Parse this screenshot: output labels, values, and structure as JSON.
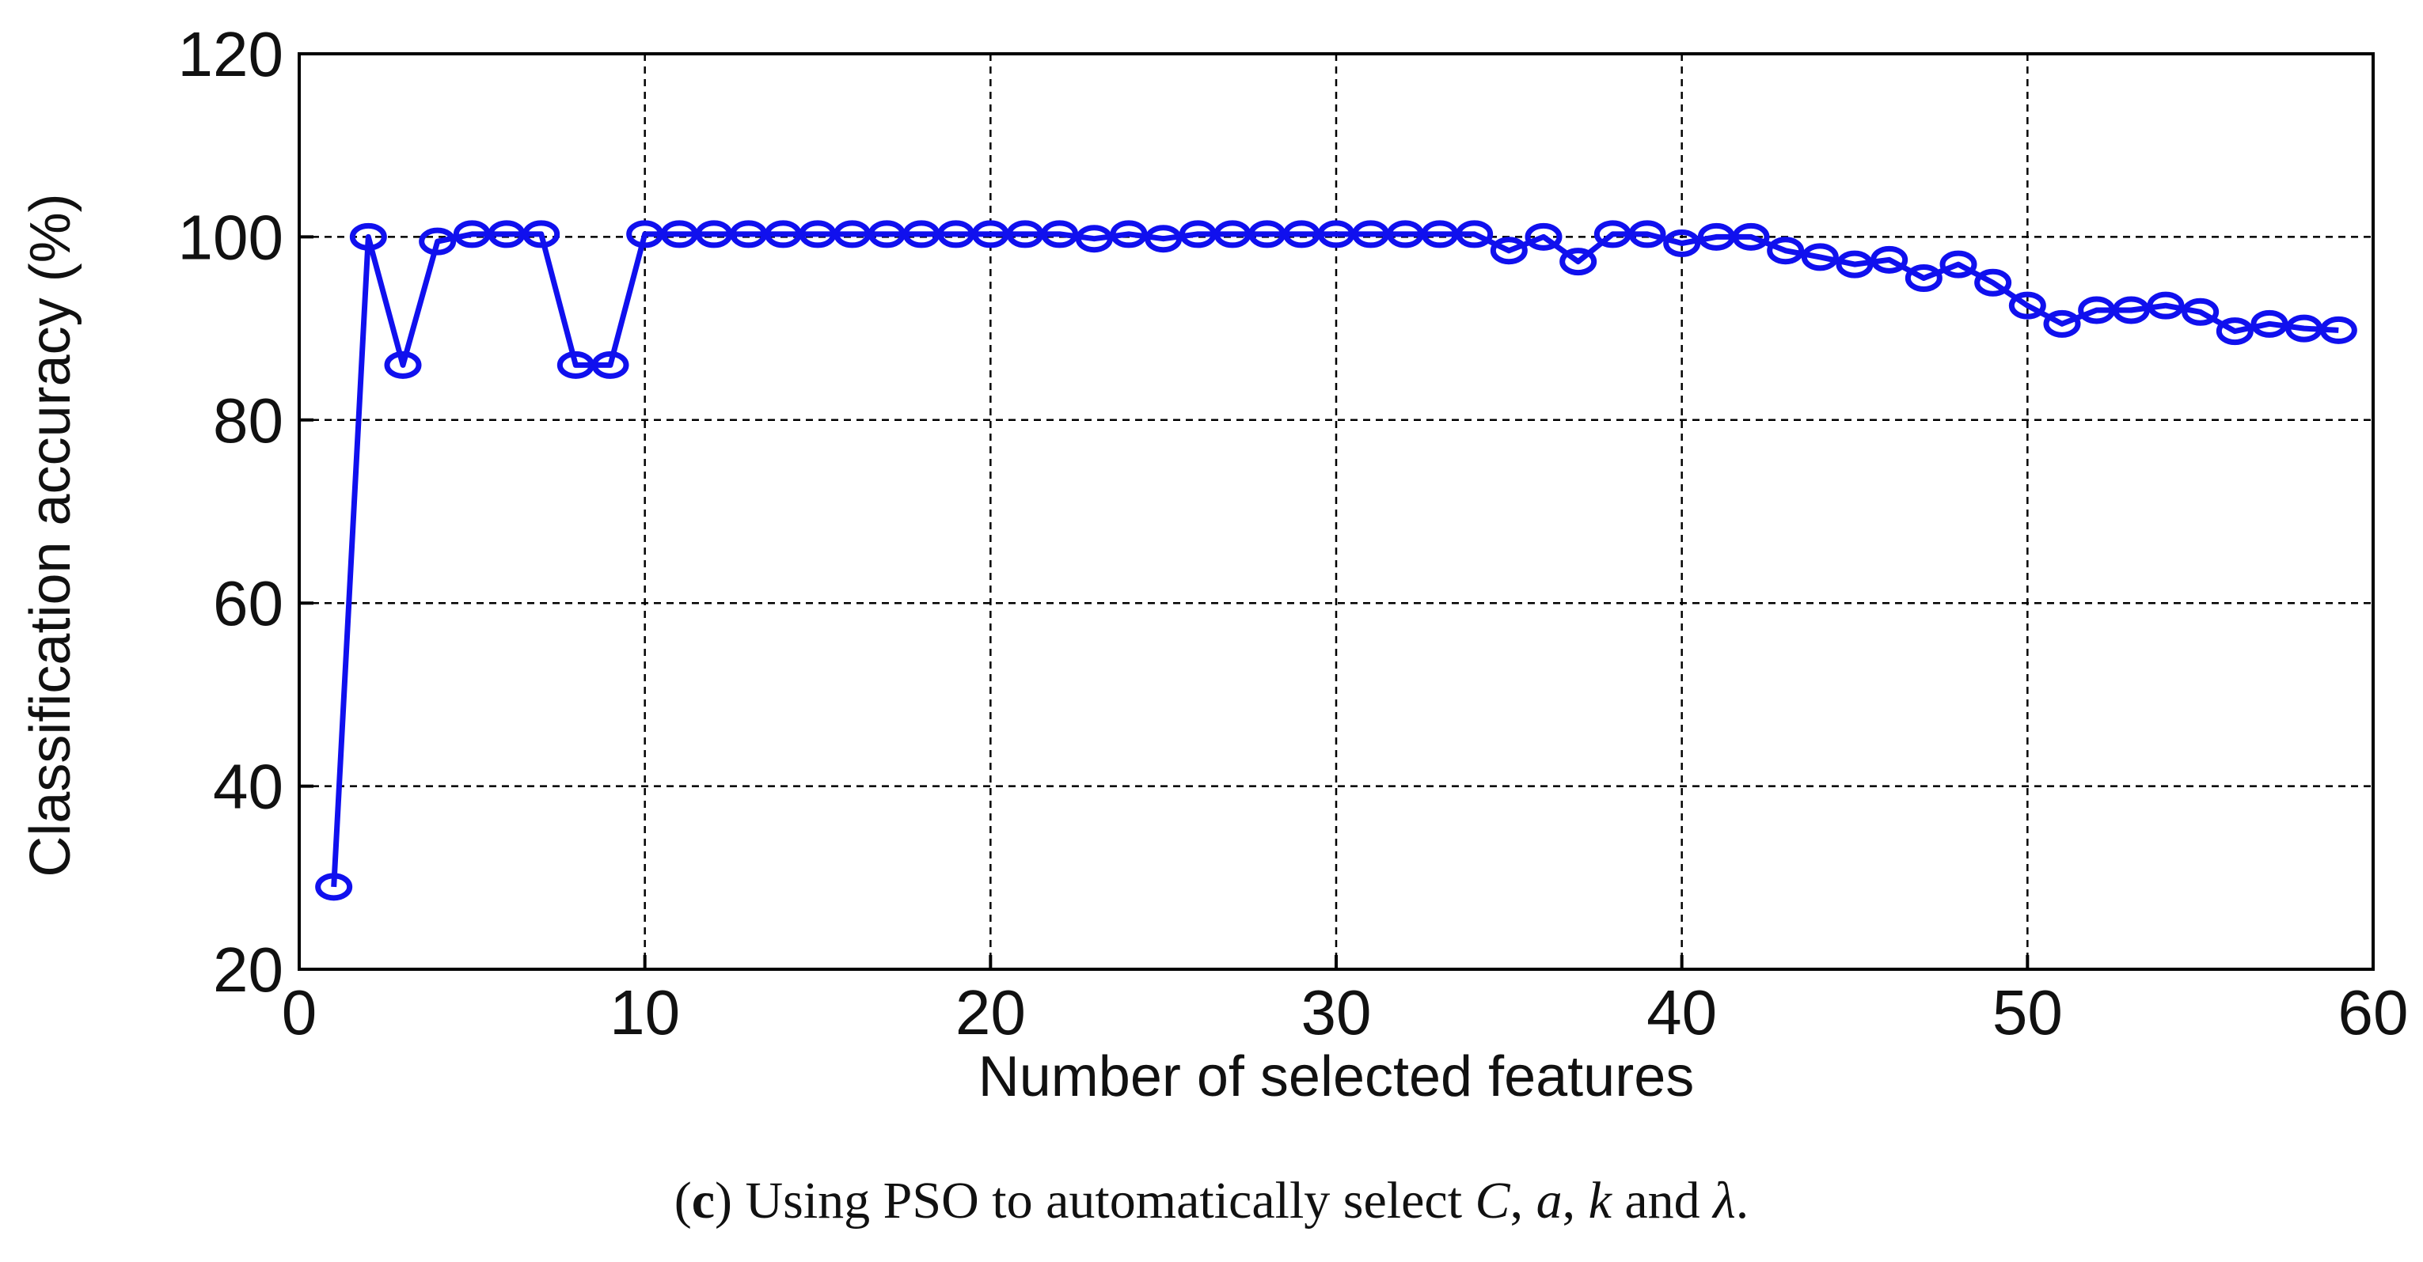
{
  "chart_data": {
    "type": "line",
    "xlabel": "Number of selected features",
    "ylabel": "Classification accuracy (%)",
    "xlim": [
      0,
      60
    ],
    "ylim": [
      20,
      120
    ],
    "xticks": [
      0,
      10,
      20,
      30,
      40,
      50,
      60
    ],
    "yticks": [
      20,
      40,
      60,
      80,
      100,
      120
    ],
    "grid": true,
    "marker": "circle",
    "line_color": "#1010ee",
    "series": [
      {
        "x": [
          1,
          2,
          3,
          4,
          5,
          6,
          7,
          8,
          9,
          10,
          11,
          12,
          13,
          14,
          15,
          16,
          17,
          18,
          19,
          20,
          21,
          22,
          23,
          24,
          25,
          26,
          27,
          28,
          29,
          30,
          31,
          32,
          33,
          34,
          35,
          36,
          37,
          38,
          39,
          40,
          41,
          42,
          43,
          44,
          45,
          46,
          47,
          48,
          49,
          50,
          51,
          52,
          53,
          54,
          55,
          56,
          57,
          58,
          59
        ],
        "values": [
          29,
          100,
          86,
          99.5,
          100.3,
          100.3,
          100.3,
          86,
          86,
          100.3,
          100.3,
          100.3,
          100.3,
          100.3,
          100.3,
          100.3,
          100.3,
          100.3,
          100.3,
          100.3,
          100.3,
          100.3,
          99.8,
          100.3,
          99.8,
          100.3,
          100.3,
          100.3,
          100.3,
          100.3,
          100.3,
          100.3,
          100.3,
          100.3,
          98.5,
          100,
          97.3,
          100.3,
          100.3,
          99.3,
          100,
          100,
          98.5,
          97.8,
          97,
          97.5,
          95.5,
          97,
          95,
          92.5,
          90.5,
          92,
          92,
          92.5,
          91.8,
          89.7,
          90.5,
          90,
          89.8
        ]
      }
    ]
  },
  "caption": {
    "label": "c",
    "text": "Using PSO to automatically select",
    "v1": "C",
    "v2": "a",
    "v3": "k",
    "and": "and",
    "v4": "λ"
  }
}
